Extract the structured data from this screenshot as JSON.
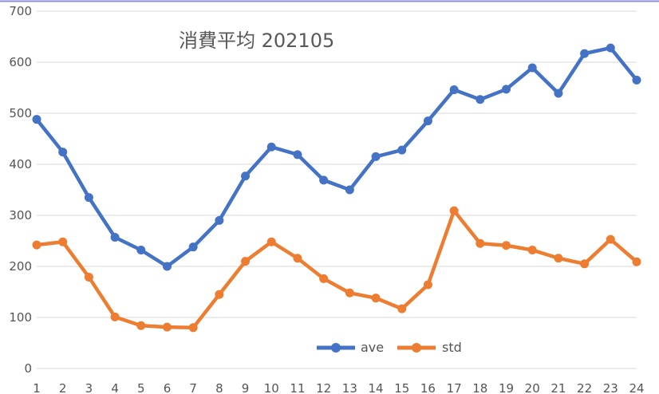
{
  "chart_data": {
    "type": "line",
    "title": "消費平均 202105",
    "xlabel": "",
    "ylabel": "",
    "categories": [
      "1",
      "2",
      "3",
      "4",
      "5",
      "6",
      "7",
      "8",
      "9",
      "10",
      "11",
      "12",
      "13",
      "14",
      "15",
      "16",
      "17",
      "18",
      "19",
      "20",
      "21",
      "22",
      "23",
      "24"
    ],
    "ylim": [
      0,
      700
    ],
    "yticks": [
      0,
      100,
      200,
      300,
      400,
      500,
      600,
      700
    ],
    "grid": true,
    "legend_position": "bottom-center",
    "series": [
      {
        "name": "ave",
        "color": "#4472C4",
        "values": [
          488,
          424,
          335,
          257,
          232,
          200,
          238,
          290,
          377,
          434,
          419,
          369,
          350,
          415,
          428,
          485,
          546,
          527,
          547,
          589,
          539,
          617,
          628,
          565
        ]
      },
      {
        "name": "std",
        "color": "#ED7D31",
        "values": [
          242,
          248,
          179,
          101,
          84,
          81,
          80,
          145,
          210,
          248,
          216,
          176,
          148,
          138,
          117,
          164,
          309,
          245,
          241,
          232,
          216,
          205,
          253,
          209
        ]
      }
    ]
  }
}
